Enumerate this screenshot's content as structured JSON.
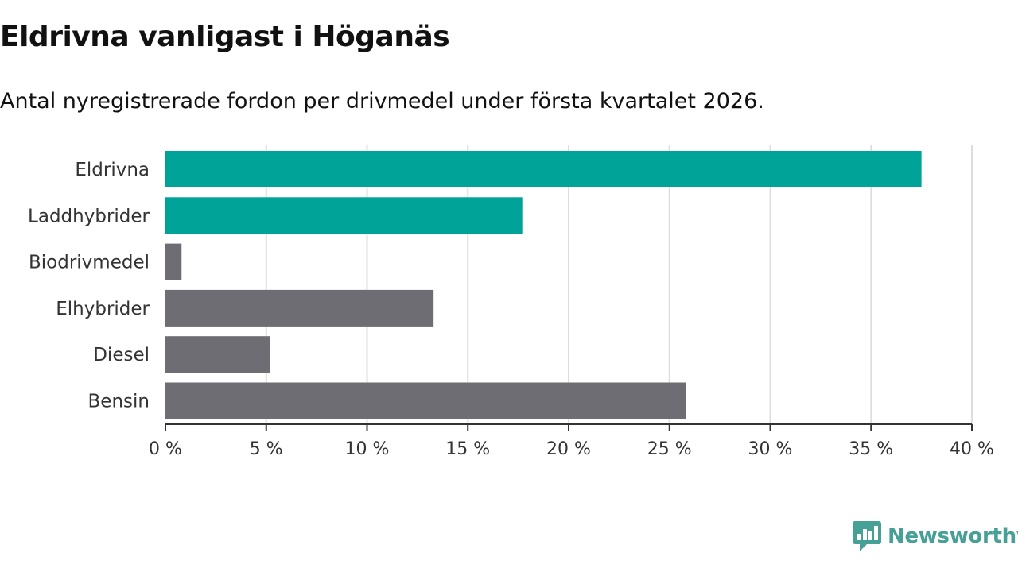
{
  "chart_data": {
    "type": "bar",
    "orientation": "horizontal",
    "title": "Eldrivna vanligast i Höganäs",
    "subtitle": "Antal nyregistrerade fordon per drivmedel under första kvartalet 2026.",
    "categories": [
      "Eldrivna",
      "Laddhybrider",
      "Biodrivmedel",
      "Elhybrider",
      "Diesel",
      "Bensin"
    ],
    "values": [
      37.5,
      17.7,
      0.8,
      13.3,
      5.2,
      25.8
    ],
    "highlighted": [
      true,
      true,
      false,
      false,
      false,
      false
    ],
    "xlim": [
      0,
      40
    ],
    "xticks": [
      0,
      5,
      10,
      15,
      20,
      25,
      30,
      35,
      40
    ],
    "tick_suffix": " %",
    "xlabel": "",
    "ylabel": "",
    "grid": true
  },
  "colors": {
    "highlight": "#00a398",
    "default": "#6e6d73",
    "grid": "#dddddd",
    "axis": "#333333",
    "brand": "#46a096"
  },
  "brand": {
    "logo_icon": "newsworthy-logo-icon",
    "name": "Newsworthy"
  }
}
